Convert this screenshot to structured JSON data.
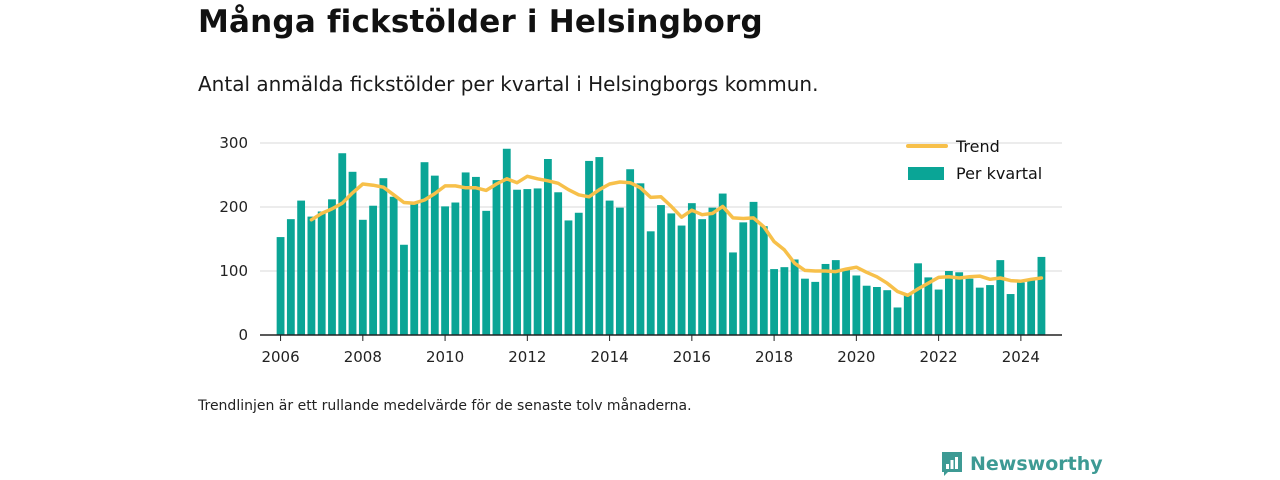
{
  "header": {
    "title": "Många fickstölder i Helsingborg",
    "subtitle": "Antal anmälda fickstölder per kvartal i Helsingborgs kommun."
  },
  "footer": {
    "note": "Trendlinjen är ett rullande medelvärde för de senaste tolv månaderna.",
    "brand": "Newsworthy"
  },
  "colors": {
    "bars": "#0aa596",
    "trend": "#f7c04a",
    "brand": "#3d9a94",
    "grid": "#d9d9d9"
  },
  "chart_data": {
    "type": "bar",
    "xlabel": "",
    "ylabel": "",
    "ylim": [
      0,
      300
    ],
    "xlim": [
      2005.5,
      2025.0
    ],
    "yticks": [
      0,
      100,
      200,
      300
    ],
    "xticks": [
      2006,
      2008,
      2010,
      2012,
      2014,
      2016,
      2018,
      2020,
      2022,
      2024
    ],
    "grid": true,
    "legend_position": "top-right",
    "series": [
      {
        "name": "Per kvartal",
        "type": "bar",
        "x": [
          2006.0,
          2006.25,
          2006.5,
          2006.75,
          2007.0,
          2007.25,
          2007.5,
          2007.75,
          2008.0,
          2008.25,
          2008.5,
          2008.75,
          2009.0,
          2009.25,
          2009.5,
          2009.75,
          2010.0,
          2010.25,
          2010.5,
          2010.75,
          2011.0,
          2011.25,
          2011.5,
          2011.75,
          2012.0,
          2012.25,
          2012.5,
          2012.75,
          2013.0,
          2013.25,
          2013.5,
          2013.75,
          2014.0,
          2014.25,
          2014.5,
          2014.75,
          2015.0,
          2015.25,
          2015.5,
          2015.75,
          2016.0,
          2016.25,
          2016.5,
          2016.75,
          2017.0,
          2017.25,
          2017.5,
          2017.75,
          2018.0,
          2018.25,
          2018.5,
          2018.75,
          2019.0,
          2019.25,
          2019.5,
          2019.75,
          2020.0,
          2020.25,
          2020.5,
          2020.75,
          2021.0,
          2021.25,
          2021.5,
          2021.75,
          2022.0,
          2022.25,
          2022.5,
          2022.75,
          2023.0,
          2023.25,
          2023.5,
          2023.75,
          2024.0,
          2024.25,
          2024.5
        ],
        "values": [
          153,
          181,
          210,
          185,
          193,
          212,
          284,
          255,
          180,
          202,
          245,
          216,
          141,
          208,
          270,
          249,
          201,
          207,
          254,
          247,
          194,
          242,
          291,
          227,
          228,
          229,
          275,
          223,
          179,
          191,
          272,
          278,
          210,
          199,
          259,
          237,
          162,
          203,
          190,
          171,
          206,
          181,
          199,
          221,
          129,
          176,
          208,
          170,
          103,
          106,
          118,
          88,
          83,
          111,
          117,
          103,
          93,
          77,
          75,
          70,
          43,
          63,
          112,
          90,
          71,
          100,
          98,
          88,
          74,
          78,
          117,
          64,
          82,
          86,
          122
        ]
      },
      {
        "name": "Trend",
        "type": "line",
        "x": [
          2006.75,
          2007.0,
          2007.25,
          2007.5,
          2007.75,
          2008.0,
          2008.25,
          2008.5,
          2008.75,
          2009.0,
          2009.25,
          2009.5,
          2009.75,
          2010.0,
          2010.25,
          2010.5,
          2010.75,
          2011.0,
          2011.25,
          2011.5,
          2011.75,
          2012.0,
          2012.25,
          2012.5,
          2012.75,
          2013.0,
          2013.25,
          2013.5,
          2013.75,
          2014.0,
          2014.25,
          2014.5,
          2014.75,
          2015.0,
          2015.25,
          2015.5,
          2015.75,
          2016.0,
          2016.25,
          2016.5,
          2016.75,
          2017.0,
          2017.25,
          2017.5,
          2017.75,
          2018.0,
          2018.25,
          2018.5,
          2018.75,
          2019.0,
          2019.25,
          2019.5,
          2019.75,
          2020.0,
          2020.25,
          2020.5,
          2020.75,
          2021.0,
          2021.25,
          2021.5,
          2021.75,
          2022.0,
          2022.25,
          2022.5,
          2022.75,
          2023.0,
          2023.25,
          2023.5,
          2023.75,
          2024.0,
          2024.25,
          2024.5
        ],
        "values": [
          180,
          190,
          197,
          206,
          222,
          236,
          234,
          231,
          219,
          207,
          206,
          211,
          221,
          233,
          233,
          230,
          230,
          226,
          236,
          244,
          238,
          248,
          244,
          241,
          237,
          227,
          219,
          216,
          227,
          236,
          239,
          238,
          230,
          215,
          216,
          201,
          184,
          195,
          188,
          190,
          201,
          183,
          182,
          183,
          169,
          146,
          133,
          112,
          101,
          100,
          100,
          99,
          103,
          106,
          98,
          91,
          81,
          68,
          62,
          72,
          81,
          90,
          91,
          89,
          91,
          92,
          87,
          89,
          85,
          84,
          87,
          89
        ]
      }
    ]
  }
}
